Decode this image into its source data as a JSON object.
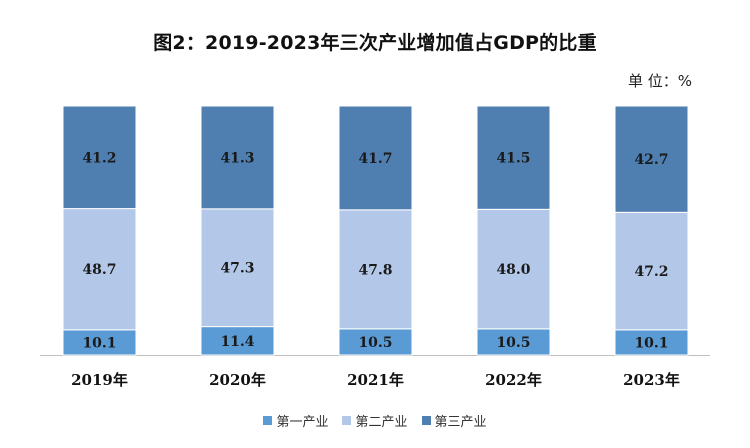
{
  "chart_data": {
    "type": "bar",
    "stacked": true,
    "title": "图2：2019-2023年三次产业增加值占GDP的比重",
    "unit_label": "单 位：%",
    "categories": [
      "2019年",
      "2020年",
      "2021年",
      "2022年",
      "2023年"
    ],
    "series": [
      {
        "name": "第一产业",
        "color": "#5b9bd5",
        "values": [
          10.1,
          11.4,
          10.5,
          10.5,
          10.1
        ]
      },
      {
        "name": "第二产业",
        "color": "#b3c8e8",
        "values": [
          48.7,
          47.3,
          47.8,
          48.0,
          47.2
        ]
      },
      {
        "name": "第三产业",
        "color": "#4f7fb0",
        "values": [
          41.2,
          41.3,
          41.7,
          41.5,
          42.7
        ]
      }
    ],
    "ylim": [
      0,
      100
    ],
    "legend_position": "bottom",
    "grid": false
  }
}
